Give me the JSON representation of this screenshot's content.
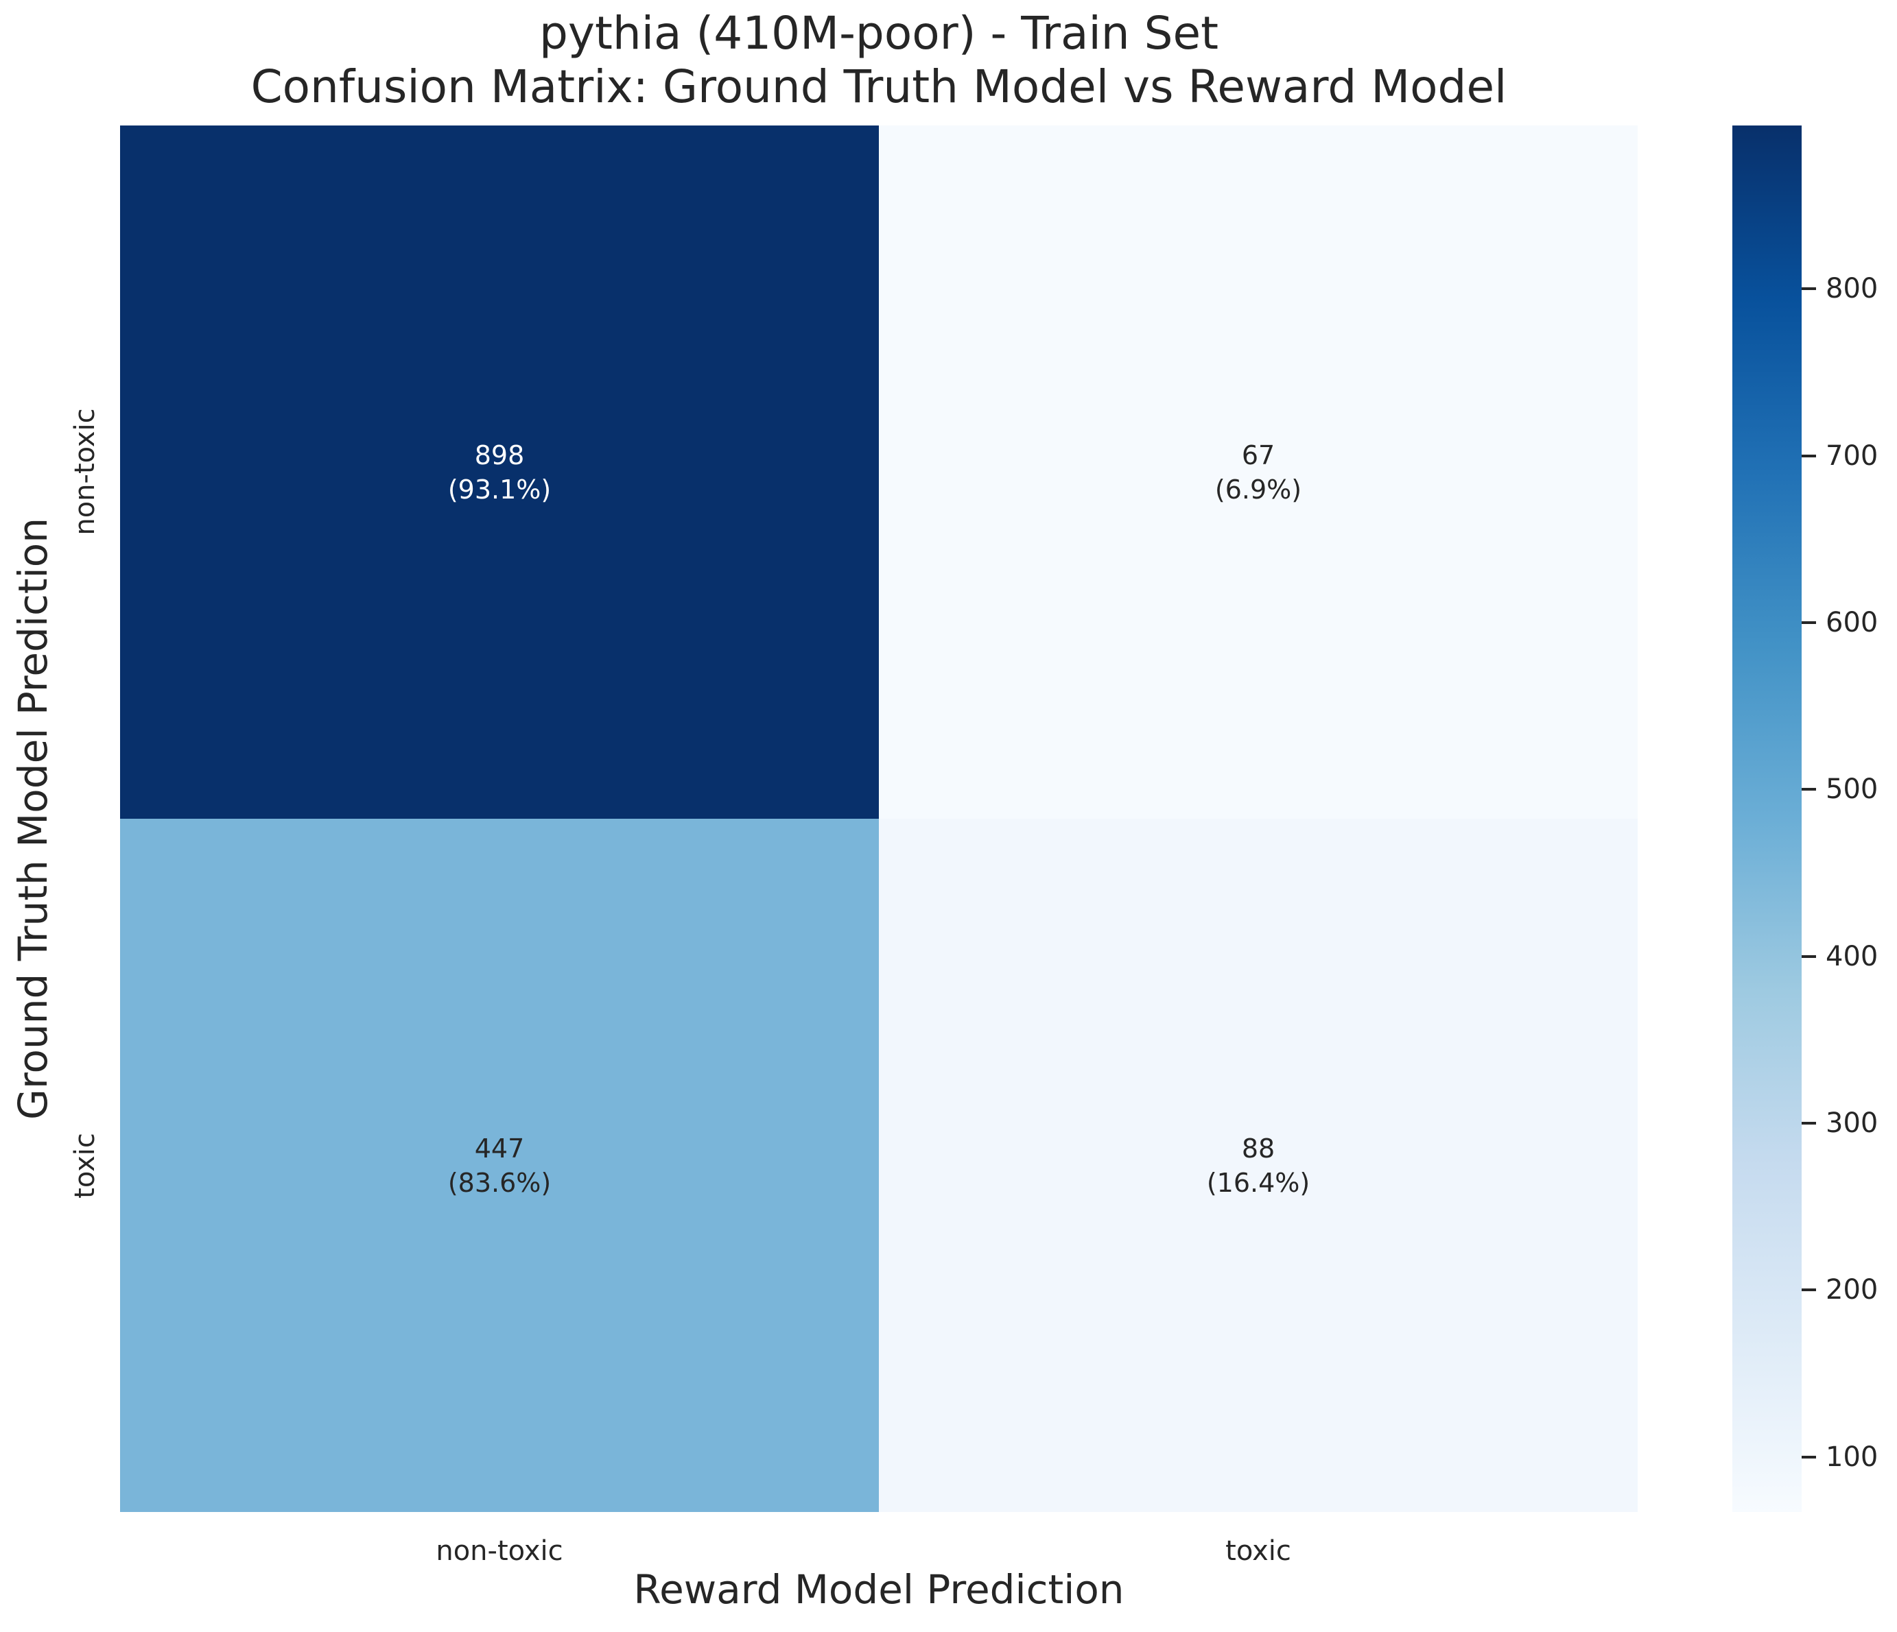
{
  "figure": {
    "title_line1": "pythia (410M-poor) - Train Set",
    "title_line2": "Confusion Matrix: Ground Truth Model vs Reward Model"
  },
  "chart_data": {
    "type": "heatmap",
    "title": "pythia (410M-poor) - Train Set",
    "subtitle": "Confusion Matrix: Ground Truth Model vs Reward Model",
    "xlabel": "Reward Model Prediction",
    "ylabel": "Ground Truth Model Prediction",
    "x_categories": [
      "non-toxic",
      "toxic"
    ],
    "y_categories": [
      "non-toxic",
      "toxic"
    ],
    "values": [
      [
        898,
        67
      ],
      [
        447,
        88
      ]
    ],
    "row_percentages": [
      [
        93.1,
        6.9
      ],
      [
        83.6,
        16.4
      ]
    ],
    "cells": [
      {
        "row": "non-toxic",
        "col": "non-toxic",
        "value": 898,
        "label": "898",
        "pct_label": "(93.1%)",
        "bg": "#08306b",
        "fg": "#ffffff"
      },
      {
        "row": "non-toxic",
        "col": "toxic",
        "value": 67,
        "label": "67",
        "pct_label": "(6.9%)",
        "bg": "#f6fafe",
        "fg": "#262626"
      },
      {
        "row": "toxic",
        "col": "non-toxic",
        "value": 447,
        "label": "447",
        "pct_label": "(83.6%)",
        "bg": "#7ab5d9",
        "fg": "#262626"
      },
      {
        "row": "toxic",
        "col": "toxic",
        "value": 88,
        "label": "88",
        "pct_label": "(16.4%)",
        "bg": "#f2f7fd",
        "fg": "#262626"
      }
    ],
    "colormap": "Blues",
    "grid": false,
    "legend": false,
    "colorbar": {
      "vmin": 67,
      "vmax": 898,
      "ticks": [
        800,
        700,
        600,
        500,
        400,
        300,
        200,
        100
      ],
      "gradient_bottom_to_top": [
        "#f7fbff",
        "#deebf7",
        "#c6dbef",
        "#9ecae1",
        "#6baed6",
        "#4292c6",
        "#2171b5",
        "#08519c",
        "#08306b"
      ]
    }
  }
}
